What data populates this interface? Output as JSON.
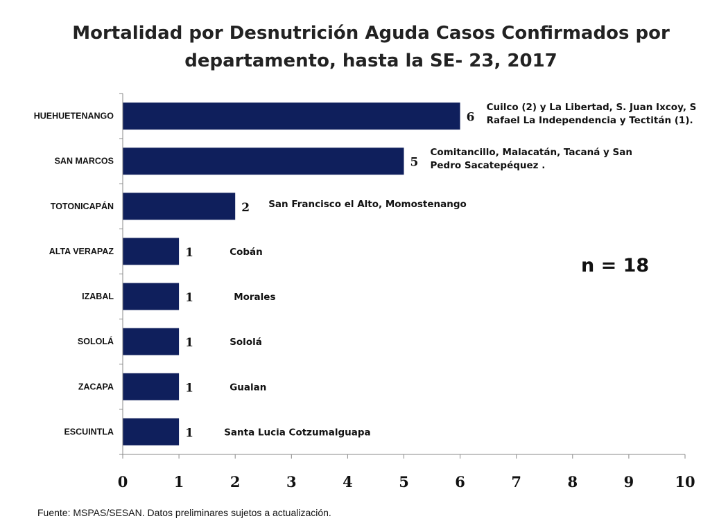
{
  "chart_data": {
    "type": "bar",
    "orientation": "horizontal",
    "title": "Mortalidad  por Desnutrición Aguda Casos Confirmados  por\ndepartamento, hasta la SE- 23, 2017",
    "categories": [
      "HUEHUETENANGO",
      "SAN MARCOS",
      "TOTONICAPÁN",
      "ALTA VERAPAZ",
      "IZABAL",
      "SOLOLÁ",
      "ZACAPA",
      "ESCUINTLA"
    ],
    "values": [
      6,
      5,
      2,
      1,
      1,
      1,
      1,
      1
    ],
    "value_labels": [
      "6",
      "5",
      "2",
      "1",
      "1",
      "1",
      "1",
      "1"
    ],
    "annotations": [
      [
        "Cuilco (2) y La Libertad, S. Juan Ixcoy, S",
        "Rafael La Independencia y Tectitán (1)."
      ],
      [
        "Comitancillo, Malacatán, Tacaná y San",
        "Pedro Sacatepéquez ."
      ],
      [
        "San Francisco el Alto, Momostenango"
      ],
      [
        "Cobán"
      ],
      [
        "Morales"
      ],
      [
        "Sololá"
      ],
      [
        "Gualan"
      ],
      [
        "Santa Lucia Cotzumalguapa"
      ]
    ],
    "xlim": [
      0,
      10
    ],
    "xticks": [
      "0",
      "1",
      "2",
      "3",
      "4",
      "5",
      "6",
      "7",
      "8",
      "9",
      "10"
    ],
    "bar_color": "#0f1f5c",
    "grid": false,
    "legend": "none"
  },
  "n_label": "n = 18",
  "footer": "Fuente:  MSPAS/SESAN. Datos preliminares sujetos a actualización."
}
